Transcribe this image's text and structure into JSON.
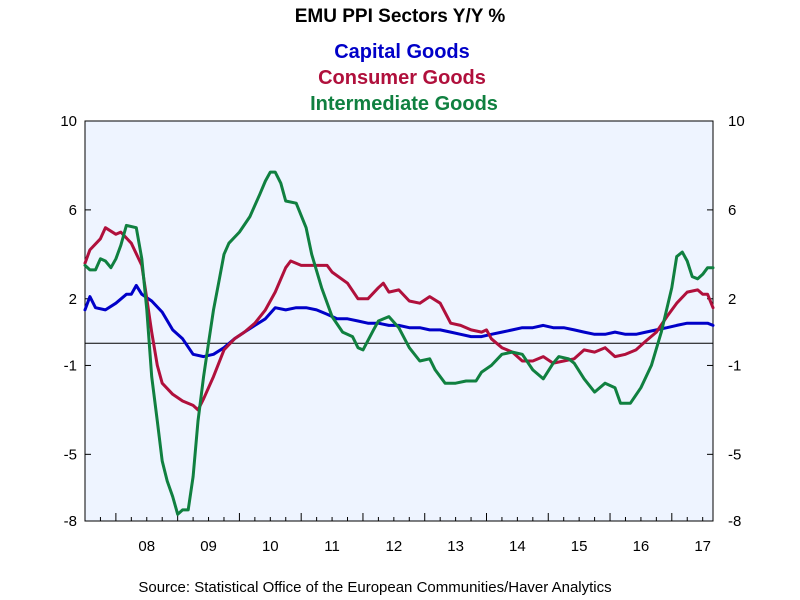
{
  "chart_data": {
    "type": "line",
    "title": "EMU PPI Sectors Y/Y %",
    "source": "Source:  Statistical Office of the European Communities/Haver Analytics",
    "xlabel": "",
    "ylabel": "",
    "ylim": [
      -8,
      10
    ],
    "yticks": [
      10,
      6,
      2,
      -1,
      -5,
      -8
    ],
    "xticks": [
      "08",
      "09",
      "10",
      "11",
      "12",
      "13",
      "14",
      "15",
      "16",
      "17"
    ],
    "xlim": [
      2007.5,
      2017.667
    ],
    "zero_line": 0,
    "grid": false,
    "legend_placement": "top-center",
    "background": "#eef4ff",
    "series": [
      {
        "name": "Capital Goods",
        "color": "#0000c8",
        "points": [
          [
            2007.5,
            1.5
          ],
          [
            2007.58,
            2.1
          ],
          [
            2007.67,
            1.6
          ],
          [
            2007.83,
            1.5
          ],
          [
            2008.0,
            1.8
          ],
          [
            2008.17,
            2.2
          ],
          [
            2008.25,
            2.2
          ],
          [
            2008.33,
            2.6
          ],
          [
            2008.42,
            2.2
          ],
          [
            2008.58,
            1.9
          ],
          [
            2008.75,
            1.4
          ],
          [
            2008.92,
            0.6
          ],
          [
            2009.08,
            0.2
          ],
          [
            2009.25,
            -0.5
          ],
          [
            2009.42,
            -0.6
          ],
          [
            2009.58,
            -0.5
          ],
          [
            2009.75,
            -0.2
          ],
          [
            2009.92,
            0.2
          ],
          [
            2010.08,
            0.5
          ],
          [
            2010.25,
            0.8
          ],
          [
            2010.42,
            1.1
          ],
          [
            2010.58,
            1.6
          ],
          [
            2010.75,
            1.5
          ],
          [
            2010.92,
            1.6
          ],
          [
            2011.08,
            1.6
          ],
          [
            2011.25,
            1.5
          ],
          [
            2011.42,
            1.3
          ],
          [
            2011.58,
            1.1
          ],
          [
            2011.75,
            1.1
          ],
          [
            2011.92,
            1.0
          ],
          [
            2012.08,
            0.9
          ],
          [
            2012.25,
            0.9
          ],
          [
            2012.42,
            0.8
          ],
          [
            2012.58,
            0.8
          ],
          [
            2012.75,
            0.7
          ],
          [
            2012.92,
            0.7
          ],
          [
            2013.08,
            0.6
          ],
          [
            2013.25,
            0.6
          ],
          [
            2013.42,
            0.5
          ],
          [
            2013.58,
            0.4
          ],
          [
            2013.75,
            0.3
          ],
          [
            2013.92,
            0.3
          ],
          [
            2014.08,
            0.4
          ],
          [
            2014.25,
            0.5
          ],
          [
            2014.42,
            0.6
          ],
          [
            2014.58,
            0.7
          ],
          [
            2014.75,
            0.7
          ],
          [
            2014.92,
            0.8
          ],
          [
            2015.08,
            0.7
          ],
          [
            2015.25,
            0.7
          ],
          [
            2015.42,
            0.6
          ],
          [
            2015.58,
            0.5
          ],
          [
            2015.75,
            0.4
          ],
          [
            2015.92,
            0.4
          ],
          [
            2016.08,
            0.5
          ],
          [
            2016.25,
            0.4
          ],
          [
            2016.42,
            0.4
          ],
          [
            2016.58,
            0.5
          ],
          [
            2016.75,
            0.6
          ],
          [
            2016.92,
            0.7
          ],
          [
            2017.08,
            0.8
          ],
          [
            2017.25,
            0.9
          ],
          [
            2017.42,
            0.9
          ],
          [
            2017.58,
            0.9
          ],
          [
            2017.667,
            0.8
          ]
        ]
      },
      {
        "name": "Consumer Goods",
        "color": "#b0103c",
        "points": [
          [
            2007.5,
            3.6
          ],
          [
            2007.58,
            4.2
          ],
          [
            2007.75,
            4.7
          ],
          [
            2007.83,
            5.2
          ],
          [
            2008.0,
            4.9
          ],
          [
            2008.08,
            5.0
          ],
          [
            2008.25,
            4.5
          ],
          [
            2008.42,
            3.5
          ],
          [
            2008.5,
            2.0
          ],
          [
            2008.58,
            0.5
          ],
          [
            2008.67,
            -1.0
          ],
          [
            2008.75,
            -1.8
          ],
          [
            2008.92,
            -2.3
          ],
          [
            2009.08,
            -2.6
          ],
          [
            2009.25,
            -2.8
          ],
          [
            2009.33,
            -3.0
          ],
          [
            2009.42,
            -2.5
          ],
          [
            2009.58,
            -1.5
          ],
          [
            2009.75,
            -0.3
          ],
          [
            2009.92,
            0.2
          ],
          [
            2010.08,
            0.5
          ],
          [
            2010.25,
            0.9
          ],
          [
            2010.42,
            1.5
          ],
          [
            2010.58,
            2.3
          ],
          [
            2010.75,
            3.4
          ],
          [
            2010.83,
            3.7
          ],
          [
            2011.0,
            3.5
          ],
          [
            2011.25,
            3.5
          ],
          [
            2011.42,
            3.5
          ],
          [
            2011.5,
            3.2
          ],
          [
            2011.75,
            2.7
          ],
          [
            2011.92,
            2.0
          ],
          [
            2012.08,
            2.0
          ],
          [
            2012.25,
            2.5
          ],
          [
            2012.33,
            2.7
          ],
          [
            2012.42,
            2.3
          ],
          [
            2012.58,
            2.4
          ],
          [
            2012.75,
            1.9
          ],
          [
            2012.92,
            1.8
          ],
          [
            2013.08,
            2.1
          ],
          [
            2013.25,
            1.8
          ],
          [
            2013.42,
            0.9
          ],
          [
            2013.58,
            0.8
          ],
          [
            2013.75,
            0.6
          ],
          [
            2013.92,
            0.5
          ],
          [
            2014.0,
            0.6
          ],
          [
            2014.08,
            0.2
          ],
          [
            2014.25,
            -0.2
          ],
          [
            2014.42,
            -0.4
          ],
          [
            2014.58,
            -0.8
          ],
          [
            2014.75,
            -0.8
          ],
          [
            2014.92,
            -0.6
          ],
          [
            2015.08,
            -0.9
          ],
          [
            2015.25,
            -0.8
          ],
          [
            2015.42,
            -0.7
          ],
          [
            2015.58,
            -0.3
          ],
          [
            2015.75,
            -0.4
          ],
          [
            2015.92,
            -0.2
          ],
          [
            2016.08,
            -0.6
          ],
          [
            2016.25,
            -0.5
          ],
          [
            2016.42,
            -0.3
          ],
          [
            2016.58,
            0.1
          ],
          [
            2016.75,
            0.5
          ],
          [
            2016.92,
            1.2
          ],
          [
            2017.08,
            1.8
          ],
          [
            2017.25,
            2.3
          ],
          [
            2017.42,
            2.4
          ],
          [
            2017.5,
            2.2
          ],
          [
            2017.58,
            2.2
          ],
          [
            2017.667,
            1.6
          ]
        ]
      },
      {
        "name": "Intermediate Goods",
        "color": "#108040",
        "points": [
          [
            2007.5,
            3.5
          ],
          [
            2007.58,
            3.3
          ],
          [
            2007.67,
            3.3
          ],
          [
            2007.75,
            3.8
          ],
          [
            2007.83,
            3.7
          ],
          [
            2007.92,
            3.4
          ],
          [
            2008.0,
            3.8
          ],
          [
            2008.08,
            4.4
          ],
          [
            2008.17,
            5.3
          ],
          [
            2008.33,
            5.2
          ],
          [
            2008.42,
            3.8
          ],
          [
            2008.5,
            1.5
          ],
          [
            2008.58,
            -1.5
          ],
          [
            2008.67,
            -3.5
          ],
          [
            2008.75,
            -5.3
          ],
          [
            2008.83,
            -6.2
          ],
          [
            2008.92,
            -6.9
          ],
          [
            2009.0,
            -7.7
          ],
          [
            2009.08,
            -7.5
          ],
          [
            2009.17,
            -7.5
          ],
          [
            2009.25,
            -6.0
          ],
          [
            2009.33,
            -3.5
          ],
          [
            2009.42,
            -1.5
          ],
          [
            2009.5,
            0.0
          ],
          [
            2009.58,
            1.5
          ],
          [
            2009.67,
            2.8
          ],
          [
            2009.75,
            4.0
          ],
          [
            2009.83,
            4.5
          ],
          [
            2010.0,
            5.0
          ],
          [
            2010.17,
            5.7
          ],
          [
            2010.33,
            6.7
          ],
          [
            2010.42,
            7.3
          ],
          [
            2010.5,
            7.7
          ],
          [
            2010.58,
            7.7
          ],
          [
            2010.67,
            7.2
          ],
          [
            2010.75,
            6.4
          ],
          [
            2010.92,
            6.3
          ],
          [
            2011.08,
            5.2
          ],
          [
            2011.17,
            4.0
          ],
          [
            2011.33,
            2.5
          ],
          [
            2011.5,
            1.2
          ],
          [
            2011.67,
            0.5
          ],
          [
            2011.83,
            0.3
          ],
          [
            2011.92,
            -0.2
          ],
          [
            2012.0,
            -0.3
          ],
          [
            2012.17,
            0.6
          ],
          [
            2012.25,
            1.0
          ],
          [
            2012.42,
            1.2
          ],
          [
            2012.58,
            0.7
          ],
          [
            2012.75,
            -0.2
          ],
          [
            2012.92,
            -0.8
          ],
          [
            2013.08,
            -0.7
          ],
          [
            2013.17,
            -1.2
          ],
          [
            2013.33,
            -1.8
          ],
          [
            2013.5,
            -1.8
          ],
          [
            2013.67,
            -1.7
          ],
          [
            2013.83,
            -1.7
          ],
          [
            2013.92,
            -1.3
          ],
          [
            2014.08,
            -1.0
          ],
          [
            2014.25,
            -0.5
          ],
          [
            2014.42,
            -0.4
          ],
          [
            2014.58,
            -0.5
          ],
          [
            2014.75,
            -1.2
          ],
          [
            2014.92,
            -1.6
          ],
          [
            2015.08,
            -0.9
          ],
          [
            2015.17,
            -0.6
          ],
          [
            2015.33,
            -0.7
          ],
          [
            2015.42,
            -0.9
          ],
          [
            2015.58,
            -1.6
          ],
          [
            2015.75,
            -2.2
          ],
          [
            2015.92,
            -1.8
          ],
          [
            2016.08,
            -2.0
          ],
          [
            2016.17,
            -2.7
          ],
          [
            2016.33,
            -2.7
          ],
          [
            2016.5,
            -2.0
          ],
          [
            2016.67,
            -1.0
          ],
          [
            2016.83,
            0.5
          ],
          [
            2017.0,
            2.5
          ],
          [
            2017.08,
            3.9
          ],
          [
            2017.17,
            4.1
          ],
          [
            2017.25,
            3.7
          ],
          [
            2017.33,
            3.0
          ],
          [
            2017.42,
            2.9
          ],
          [
            2017.5,
            3.1
          ],
          [
            2017.58,
            3.4
          ],
          [
            2017.667,
            3.4
          ]
        ]
      }
    ]
  }
}
